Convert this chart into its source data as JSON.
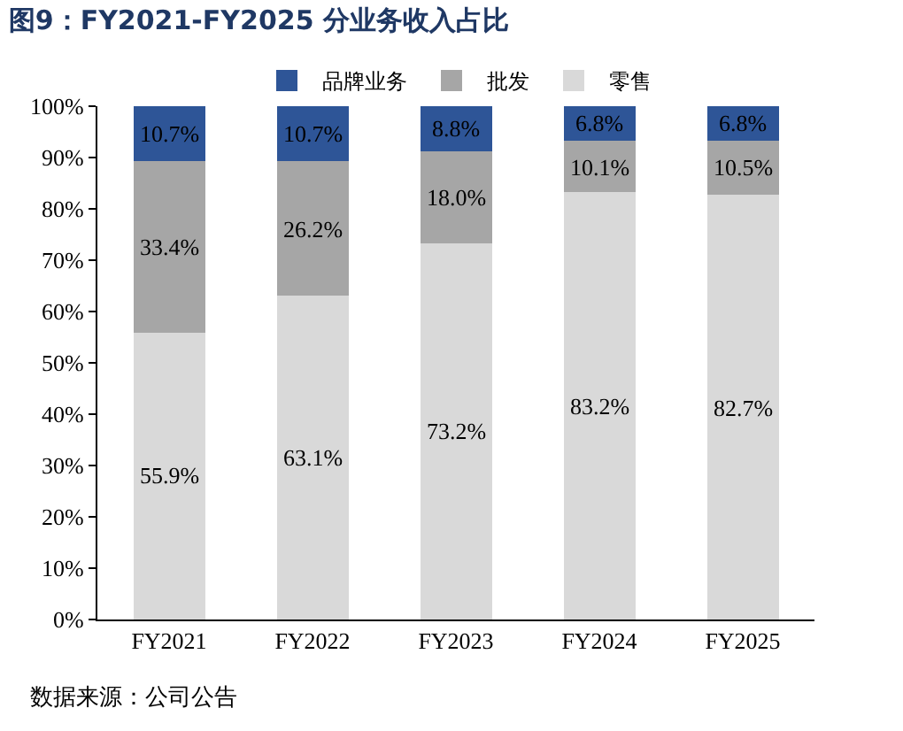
{
  "chart_data": {
    "type": "bar",
    "title": "图9：FY2021-FY2025 分业务收入占比",
    "categories": [
      "FY2021",
      "FY2022",
      "FY2023",
      "FY2024",
      "FY2025"
    ],
    "stacked": true,
    "series": [
      {
        "name": "零售",
        "color": "#d9d9d9",
        "values": [
          55.9,
          63.1,
          73.2,
          83.2,
          82.7
        ],
        "value_labels": [
          "55.9%",
          "63.1%",
          "73.2%",
          "83.2%",
          "82.7%"
        ]
      },
      {
        "name": "批发",
        "color": "#a6a6a6",
        "values": [
          33.4,
          26.2,
          18.0,
          10.1,
          10.5
        ],
        "value_labels": [
          "33.4%",
          "26.2%",
          "18.0%",
          "10.1%",
          "10.5%"
        ]
      },
      {
        "name": "品牌业务",
        "color": "#2e5597",
        "values": [
          10.7,
          10.7,
          8.8,
          6.8,
          6.8
        ],
        "value_labels": [
          "10.7%",
          "10.7%",
          "8.8%",
          "6.8%",
          "6.8%"
        ]
      }
    ],
    "ylim": [
      0,
      100
    ],
    "yticks": [
      {
        "value": 0,
        "label": "0%"
      },
      {
        "value": 10,
        "label": "10%"
      },
      {
        "value": 20,
        "label": "20%"
      },
      {
        "value": 30,
        "label": "30%"
      },
      {
        "value": 40,
        "label": "40%"
      },
      {
        "value": 50,
        "label": "50%"
      },
      {
        "value": 60,
        "label": "60%"
      },
      {
        "value": 70,
        "label": "70%"
      },
      {
        "value": 80,
        "label": "80%"
      },
      {
        "value": 90,
        "label": "90%"
      },
      {
        "value": 100,
        "label": "100%"
      }
    ],
    "legend": "top",
    "annotations": [
      "数据来源：公司公告"
    ]
  }
}
